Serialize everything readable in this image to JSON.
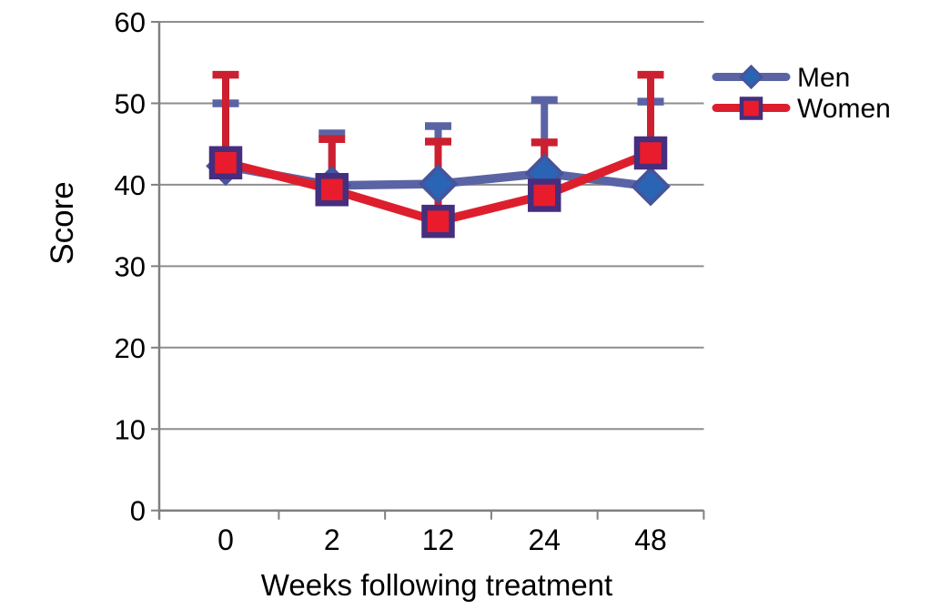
{
  "chart_data": {
    "type": "line",
    "title": "",
    "xlabel": "Weeks following treatment",
    "ylabel": "Score",
    "categories": [
      "0",
      "2",
      "12",
      "24",
      "48"
    ],
    "yticks": [
      0,
      10,
      20,
      30,
      40,
      50,
      60
    ],
    "ylim": [
      0,
      60
    ],
    "grid": true,
    "legend_position": "right-top",
    "error_bars": "upper-only",
    "series": [
      {
        "name": "Men",
        "marker": "diamond",
        "values": [
          42.3,
          39.9,
          40.1,
          41.4,
          39.8
        ],
        "error_bar_top": [
          50.0,
          46.3,
          47.2,
          50.4,
          50.2
        ],
        "line_color": "#5A64A5",
        "marker_fill": "#2A64B5",
        "marker_stroke": "#46549B",
        "error_color": "#5A64A5"
      },
      {
        "name": "Women",
        "marker": "square",
        "values": [
          42.7,
          39.4,
          35.5,
          38.7,
          43.9
        ],
        "error_bar_top": [
          53.5,
          45.6,
          45.3,
          45.2,
          53.5
        ],
        "line_color": "#DD1F2D",
        "marker_fill": "#E91C2D",
        "marker_stroke": "#452E7D",
        "error_color": "#CC2030"
      }
    ],
    "colors": {
      "gridline": "#8E8E8E",
      "axis": "#808080",
      "text": "#000000",
      "background": "#FFFFFF"
    }
  }
}
